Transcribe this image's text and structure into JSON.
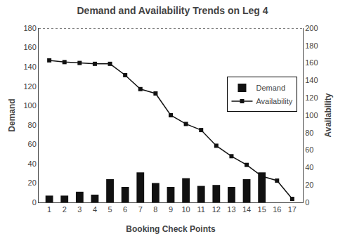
{
  "chart_data": {
    "type": "bar",
    "title": "Demand and Availability Trends on Leg 4",
    "xlabel": "Booking Check Points",
    "ylabel": "Demand",
    "y2label": "Availability",
    "x": [
      1,
      2,
      3,
      4,
      5,
      6,
      7,
      8,
      9,
      10,
      11,
      12,
      13,
      14,
      15,
      16,
      17
    ],
    "series": [
      {
        "name": "Demand",
        "type": "bar",
        "color": "#111111",
        "values": [
          7,
          7,
          11,
          8,
          24,
          16,
          31,
          20,
          16,
          25,
          17,
          18,
          16,
          24,
          31,
          0,
          0
        ]
      },
      {
        "name": "Availability",
        "type": "line",
        "axis": "y2",
        "color": "#111111",
        "marker": "square",
        "values": [
          163,
          161,
          160,
          159,
          159,
          146,
          130,
          125,
          100,
          90,
          83,
          65,
          53,
          43,
          30,
          25,
          4
        ]
      }
    ],
    "xlim": [
      0.3,
      17.7
    ],
    "xticks": [
      1,
      2,
      3,
      4,
      5,
      6,
      7,
      8,
      9,
      10,
      11,
      12,
      13,
      14,
      15,
      16,
      17
    ],
    "ylim": [
      0,
      180
    ],
    "yticks": [
      0,
      20,
      40,
      60,
      80,
      100,
      120,
      140,
      160,
      180
    ],
    "y2lim": [
      0,
      200
    ],
    "y2ticks": [
      0,
      20,
      40,
      60,
      80,
      100,
      120,
      140,
      160,
      180,
      200
    ],
    "grid": false,
    "legend": "right"
  }
}
